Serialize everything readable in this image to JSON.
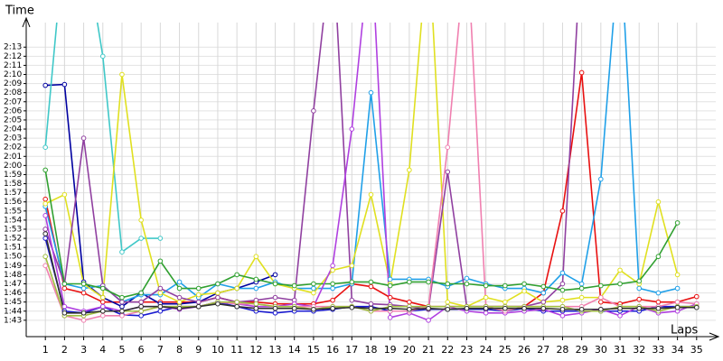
{
  "chart_data": {
    "type": "line",
    "y_label": "Time",
    "x_label": "Laps",
    "x": [
      1,
      2,
      3,
      4,
      5,
      6,
      7,
      8,
      9,
      10,
      11,
      12,
      13,
      14,
      15,
      16,
      17,
      18,
      19,
      20,
      21,
      22,
      23,
      24,
      25,
      26,
      27,
      28,
      29,
      30,
      31,
      32,
      33,
      34,
      35
    ],
    "xlim": [
      0,
      36
    ],
    "xticks": [
      1,
      2,
      3,
      4,
      5,
      6,
      7,
      8,
      9,
      10,
      11,
      12,
      13,
      14,
      15,
      16,
      17,
      18,
      19,
      20,
      21,
      22,
      23,
      24,
      25,
      26,
      27,
      28,
      29,
      30,
      31,
      32,
      33,
      34,
      35
    ],
    "ylim": [
      101.2,
      135.7
    ],
    "yticks": [
      {
        "value": 103,
        "label": "1:43"
      },
      {
        "value": 104,
        "label": "1:44"
      },
      {
        "value": 105,
        "label": "1:45"
      },
      {
        "value": 106,
        "label": "1:46"
      },
      {
        "value": 107,
        "label": "1:47"
      },
      {
        "value": 108,
        "label": "1:48"
      },
      {
        "value": 109,
        "label": "1:49"
      },
      {
        "value": 110,
        "label": "1:50"
      },
      {
        "value": 111,
        "label": "1:51"
      },
      {
        "value": 112,
        "label": "1:52"
      },
      {
        "value": 113,
        "label": "1:53"
      },
      {
        "value": 114,
        "label": "1:54"
      },
      {
        "value": 115,
        "label": "1:55"
      },
      {
        "value": 116,
        "label": "1:56"
      },
      {
        "value": 117,
        "label": "1:57"
      },
      {
        "value": 118,
        "label": "1:58"
      },
      {
        "value": 119,
        "label": "1:59"
      },
      {
        "value": 120,
        "label": "2:00"
      },
      {
        "value": 121,
        "label": "2:01"
      },
      {
        "value": 122,
        "label": "2:02"
      },
      {
        "value": 123,
        "label": "2:03"
      },
      {
        "value": 124,
        "label": "2:04"
      },
      {
        "value": 125,
        "label": "2:05"
      },
      {
        "value": 126,
        "label": "2:06"
      },
      {
        "value": 127,
        "label": "2:07"
      },
      {
        "value": 128,
        "label": "2:08"
      },
      {
        "value": 129,
        "label": "2:09"
      },
      {
        "value": 130,
        "label": "2:10"
      },
      {
        "value": 131,
        "label": "2:11"
      },
      {
        "value": 132,
        "label": "2:12"
      },
      {
        "value": 133,
        "label": "2:13"
      }
    ],
    "grid": true,
    "series": [
      {
        "color": "#e81010",
        "values": [
          116.3,
          106.5,
          106,
          105,
          105,
          105,
          105,
          105,
          105,
          105.5,
          105,
          105,
          104.8,
          104.8,
          104.8,
          105.2,
          107,
          106.7,
          105.5,
          105,
          104.5,
          104.5,
          104.5,
          104.5,
          104.5,
          104.5,
          106,
          115,
          130.2,
          105,
          104.8,
          105.3,
          105,
          105,
          105.6
        ]
      },
      {
        "color": "#0000a0",
        "values": [
          128.8,
          128.9,
          107.2,
          105.5,
          104.5,
          106,
          104.8,
          104.8,
          105,
          106,
          106.5,
          107.2,
          108,
          null,
          null,
          null,
          null,
          null,
          null,
          null,
          null,
          null,
          null,
          null,
          null,
          null,
          null,
          null,
          null,
          null,
          null,
          null,
          null,
          null,
          null
        ]
      },
      {
        "color": "#1818d0",
        "values": [
          112,
          104,
          103.8,
          104.5,
          103.6,
          103.5,
          104,
          104.5,
          104.5,
          105,
          104.5,
          104,
          103.8,
          104,
          104,
          104.2,
          104.5,
          104.5,
          104,
          104,
          104.2,
          104.2,
          104.2,
          104.2,
          104,
          104.3,
          104,
          104,
          104,
          104,
          104,
          104,
          104.5,
          104.5,
          104.5
        ]
      },
      {
        "color": "#20a0e8",
        "values": [
          115.5,
          107,
          106.5,
          106.8,
          105,
          105.8,
          105.8,
          107.2,
          105.5,
          107,
          106.5,
          106.5,
          107.2,
          106.5,
          106.5,
          106.5,
          107,
          128,
          107.5,
          107.5,
          107.5,
          106.7,
          107.6,
          107,
          106.5,
          106.5,
          106,
          108.2,
          107,
          118.5,
          145,
          106.5,
          106,
          106.5,
          null
        ]
      },
      {
        "color": "#40c8c8",
        "values": [
          122,
          145,
          145,
          132,
          110.5,
          112,
          112,
          null,
          null,
          null,
          null,
          null,
          null,
          null,
          null,
          null,
          null,
          null,
          null,
          null,
          null,
          null,
          null,
          null,
          null,
          null,
          null,
          null,
          null,
          null,
          null,
          null,
          null,
          null,
          null
        ]
      },
      {
        "color": "#e0e020",
        "values": [
          115.8,
          116.8,
          107,
          105.5,
          130,
          114,
          106,
          105,
          105.8,
          106,
          106.5,
          110,
          107,
          106.5,
          106,
          108.5,
          109,
          116.8,
          107,
          119.5,
          145,
          105,
          104.5,
          105.5,
          105,
          106.2,
          105,
          105.2,
          105.5,
          105.5,
          108.5,
          107,
          116,
          108,
          null
        ]
      },
      {
        "color": "#9040a0",
        "values": [
          113,
          107,
          123,
          106.8,
          105,
          105,
          106.5,
          105.5,
          105,
          105.5,
          105,
          105.2,
          105.5,
          105.2,
          126,
          145,
          105.2,
          104.8,
          104.7,
          104.5,
          104.2,
          119.3,
          104.5,
          104.5,
          104.5,
          104.5,
          105,
          107,
          145,
          null,
          null,
          null,
          null,
          null,
          null
        ]
      },
      {
        "color": "#30a030",
        "values": [
          119.5,
          107,
          107,
          106.5,
          105.5,
          106,
          109.5,
          106.5,
          106.5,
          107,
          108,
          107.5,
          107,
          106.8,
          107,
          107,
          107.2,
          107.2,
          106.8,
          107.2,
          107.2,
          107,
          107,
          106.8,
          106.8,
          107,
          106.7,
          106.3,
          106.5,
          106.8,
          107,
          107.3,
          110,
          113.7,
          null
        ]
      },
      {
        "color": "#b040e0",
        "values": [
          114.5,
          104.5,
          104,
          104.5,
          104,
          104.5,
          104.5,
          104.2,
          104.5,
          105,
          104.8,
          104.5,
          104.5,
          104.8,
          104.5,
          109,
          124,
          145,
          103.3,
          103.8,
          103,
          104.5,
          104,
          103.8,
          103.8,
          104,
          104.2,
          103.5,
          103.8,
          104.2,
          103.5,
          104.5,
          103.8,
          104,
          104.8
        ]
      },
      {
        "color": "#f080b0",
        "values": [
          109,
          103.5,
          103,
          103.5,
          103.5,
          104,
          104.5,
          104.5,
          104.5,
          105,
          104.8,
          104.8,
          104.5,
          104.5,
          104.5,
          104.5,
          104.5,
          104,
          104,
          104,
          104.5,
          122,
          145,
          104.5,
          104,
          104.5,
          104.5,
          104.5,
          104.5,
          105.5,
          104.5,
          104.5,
          104.5,
          105,
          104.8
        ]
      },
      {
        "color": "#a0c040",
        "values": [
          110,
          103.5,
          103.5,
          104,
          104,
          104,
          104.5,
          104.5,
          104.5,
          105,
          105,
          104.8,
          104.5,
          104.5,
          104.2,
          104.5,
          104.5,
          104,
          104.5,
          104.5,
          104.5,
          104.5,
          104.5,
          104.5,
          104.5,
          104.5,
          104.5,
          104.5,
          104,
          104,
          104.5,
          104.5,
          104,
          104.5,
          104.5
        ]
      },
      {
        "color": "#303030",
        "values": [
          112.5,
          103.8,
          103.8,
          104,
          104,
          104.5,
          104.5,
          104.3,
          104.5,
          104.8,
          104.5,
          104.3,
          104.3,
          104.3,
          104.2,
          104.3,
          104.4,
          104.3,
          104.3,
          104.2,
          104.3,
          104.2,
          104.3,
          104.3,
          104.3,
          104.3,
          104.3,
          104.2,
          104.2,
          104.2,
          104.3,
          104.3,
          104.3,
          104.4,
          104.4
        ]
      }
    ]
  }
}
